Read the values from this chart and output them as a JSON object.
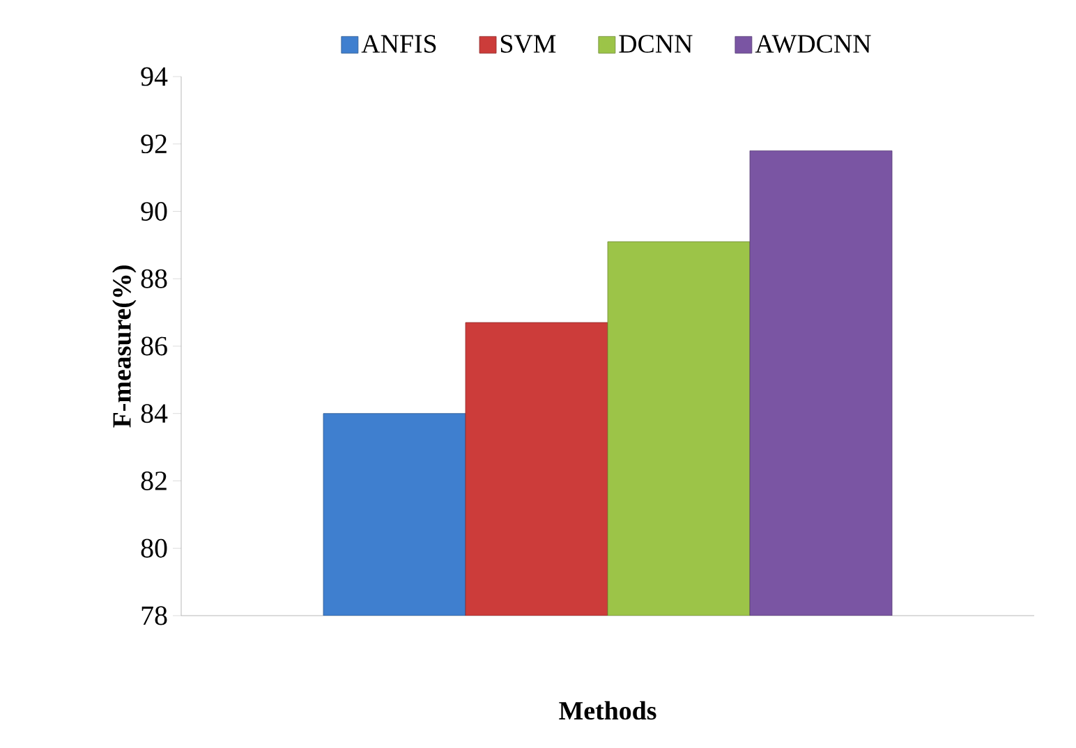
{
  "chart_data": {
    "type": "bar",
    "xlabel": "Methods",
    "ylabel": "F-measure(%)",
    "categories": [
      null
    ],
    "series": [
      {
        "name": "ANFIS",
        "color": "#3f7fcf",
        "values": [
          84.0
        ]
      },
      {
        "name": "SVM",
        "color": "#cc3c3a",
        "values": [
          86.7
        ]
      },
      {
        "name": "DCNN",
        "color": "#9cc448",
        "values": [
          89.1
        ]
      },
      {
        "name": "AWDCNN",
        "color": "#7a55a3",
        "values": [
          91.8
        ]
      }
    ],
    "ylim": [
      78,
      94
    ],
    "yticks": [
      78,
      80,
      82,
      84,
      86,
      88,
      90,
      92,
      94
    ],
    "grid": false,
    "legend": "top"
  }
}
